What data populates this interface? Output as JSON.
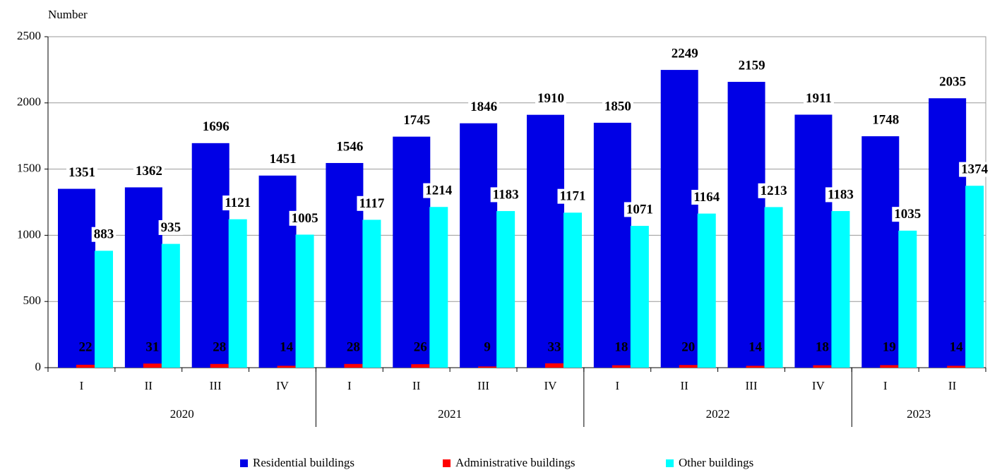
{
  "chart_data": {
    "type": "bar",
    "y_label": "Number",
    "categories": [
      "I",
      "II",
      "III",
      "IV",
      "I",
      "II",
      "III",
      "IV",
      "I",
      "II",
      "III",
      "IV",
      "I",
      "II"
    ],
    "years": [
      "2020",
      "2020",
      "2020",
      "2020",
      "2021",
      "2021",
      "2021",
      "2021",
      "2022",
      "2022",
      "2022",
      "2022",
      "2023",
      "2023"
    ],
    "series": [
      {
        "name": "Residential buildings",
        "color": "#0000e6",
        "values": [
          1351,
          1362,
          1696,
          1451,
          1546,
          1745,
          1846,
          1910,
          1850,
          2249,
          2159,
          1911,
          1748,
          2035
        ]
      },
      {
        "name": "Administrative buildings",
        "color": "#ff0000",
        "values": [
          22,
          31,
          28,
          14,
          28,
          26,
          9,
          33,
          18,
          20,
          14,
          18,
          19,
          14
        ]
      },
      {
        "name": "Other buildings",
        "color": "#00ffff",
        "values": [
          883,
          935,
          1121,
          1005,
          1117,
          1214,
          1183,
          1171,
          1071,
          1164,
          1213,
          1183,
          1035,
          1374
        ]
      }
    ],
    "ylim": [
      0,
      2500
    ],
    "yticks": [
      0,
      500,
      1000,
      1500,
      2000,
      2500
    ],
    "grid": true,
    "legend": "bottom"
  }
}
